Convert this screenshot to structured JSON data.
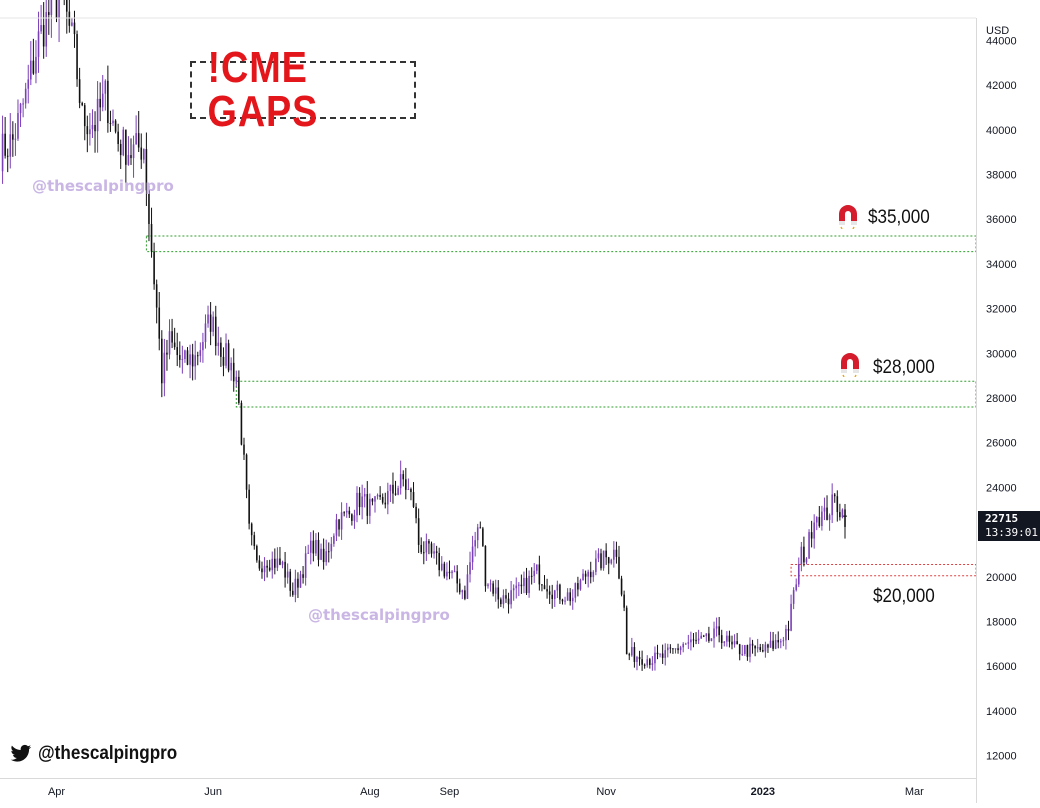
{
  "header": {
    "title": "!CME GAPS"
  },
  "watermarks": [
    "@thescalpingpro",
    "@thescalpingpro"
  ],
  "footer": {
    "handle": "@thescalpingpro",
    "icon": "twitter-bird-icon"
  },
  "price_tag": {
    "price": "22715",
    "countdown": "13:39:01"
  },
  "levels": [
    {
      "label": "$35,000",
      "icon": "magnet-icon"
    },
    {
      "label": "$28,000",
      "icon": "magnet-icon"
    },
    {
      "label": "$20,000"
    }
  ],
  "chart_data": {
    "type": "candlestick",
    "title": "!CME GAPS",
    "y_axis": {
      "label": "USD",
      "ticks": [
        12000,
        14000,
        16000,
        18000,
        20000,
        22000,
        24000,
        26000,
        28000,
        30000,
        32000,
        34000,
        36000,
        38000,
        40000,
        42000,
        44000
      ],
      "range": [
        11000,
        45000
      ],
      "position": "right"
    },
    "x_axis": {
      "ticks": [
        "Apr",
        "Jun",
        "Aug",
        "Sep",
        "Nov",
        "2023",
        "Mar"
      ],
      "tick_dates": [
        "2022-04-01",
        "2022-06-01",
        "2022-08-01",
        "2022-09-01",
        "2022-11-01",
        "2023-01-01",
        "2023-03-01"
      ],
      "range": [
        "2022-03-10",
        "2023-03-25"
      ]
    },
    "gap_zones": [
      {
        "label": "$35,000",
        "low": 34550,
        "high": 35250,
        "from": "2022-05-06",
        "to": "2023-03-25",
        "color": "#2e9e2e"
      },
      {
        "label": "$28,000",
        "low": 27600,
        "high": 28750,
        "from": "2022-06-10",
        "to": "2023-03-25",
        "color": "#2e9e2e"
      },
      {
        "label": "$20,000",
        "low": 20050,
        "high": 20550,
        "from": "2023-01-12",
        "to": "2023-03-25",
        "color": "#e04040"
      }
    ],
    "last_price": 22715,
    "anchors": [
      [
        "2022-03-10",
        39000
      ],
      [
        "2022-03-15",
        39500
      ],
      [
        "2022-03-20",
        41500
      ],
      [
        "2022-03-25",
        44000
      ],
      [
        "2022-03-30",
        45500
      ],
      [
        "2022-04-03",
        46000
      ],
      [
        "2022-04-08",
        43500
      ],
      [
        "2022-04-11",
        40500
      ],
      [
        "2022-04-16",
        40300
      ],
      [
        "2022-04-20",
        41500
      ],
      [
        "2022-04-25",
        39500
      ],
      [
        "2022-04-30",
        39000
      ],
      [
        "2022-05-05",
        39300
      ],
      [
        "2022-05-07",
        36000
      ],
      [
        "2022-05-10",
        32000
      ],
      [
        "2022-05-12",
        29000
      ],
      [
        "2022-05-15",
        30500
      ],
      [
        "2022-05-20",
        29500
      ],
      [
        "2022-05-25",
        29800
      ],
      [
        "2022-05-31",
        31500
      ],
      [
        "2022-06-05",
        30000
      ],
      [
        "2022-06-10",
        29000
      ],
      [
        "2022-06-13",
        25000
      ],
      [
        "2022-06-15",
        22000
      ],
      [
        "2022-06-18",
        20500
      ],
      [
        "2022-06-22",
        20800
      ],
      [
        "2022-06-28",
        20500
      ],
      [
        "2022-07-02",
        19300
      ],
      [
        "2022-07-06",
        20400
      ],
      [
        "2022-07-10",
        21500
      ],
      [
        "2022-07-14",
        20600
      ],
      [
        "2022-07-19",
        22500
      ],
      [
        "2022-07-24",
        22800
      ],
      [
        "2022-07-28",
        23500
      ],
      [
        "2022-08-02",
        23000
      ],
      [
        "2022-08-08",
        23600
      ],
      [
        "2022-08-14",
        24300
      ],
      [
        "2022-08-18",
        23300
      ],
      [
        "2022-08-20",
        21500
      ],
      [
        "2022-08-26",
        20800
      ],
      [
        "2022-09-02",
        20000
      ],
      [
        "2022-09-07",
        19300
      ],
      [
        "2022-09-10",
        21300
      ],
      [
        "2022-09-13",
        22300
      ],
      [
        "2022-09-15",
        20000
      ],
      [
        "2022-09-21",
        19000
      ],
      [
        "2022-09-28",
        19300
      ],
      [
        "2022-10-05",
        20200
      ],
      [
        "2022-10-12",
        19300
      ],
      [
        "2022-10-19",
        19100
      ],
      [
        "2022-10-25",
        20300
      ],
      [
        "2022-10-30",
        20700
      ],
      [
        "2022-11-05",
        21200
      ],
      [
        "2022-11-08",
        18500
      ],
      [
        "2022-11-09",
        16500
      ],
      [
        "2022-11-12",
        16500
      ],
      [
        "2022-11-20",
        16300
      ],
      [
        "2022-11-25",
        16500
      ],
      [
        "2022-12-01",
        17000
      ],
      [
        "2022-12-10",
        17100
      ],
      [
        "2022-12-15",
        17500
      ],
      [
        "2022-12-20",
        16800
      ],
      [
        "2022-12-27",
        16700
      ],
      [
        "2023-01-02",
        16700
      ],
      [
        "2023-01-08",
        17200
      ],
      [
        "2023-01-11",
        17800
      ],
      [
        "2023-01-14",
        19800
      ],
      [
        "2023-01-16",
        21000
      ],
      [
        "2023-01-18",
        21000
      ],
      [
        "2023-01-21",
        22800
      ],
      [
        "2023-01-25",
        22700
      ],
      [
        "2023-01-29",
        23400
      ],
      [
        "2023-02-02",
        22715
      ]
    ],
    "grid": false,
    "legend": "none"
  }
}
